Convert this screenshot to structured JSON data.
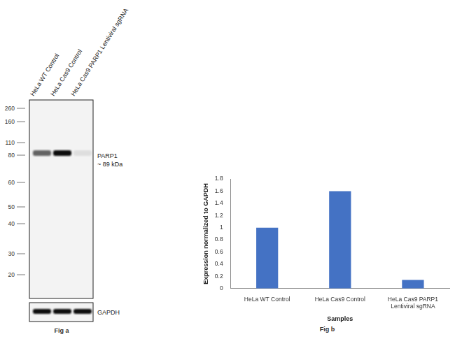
{
  "blot": {
    "lanes": [
      "HeLa WT Control",
      "HeLa Cas9 Control",
      "HeLa Cas9 PARP1 Lentiviral sgRNA"
    ],
    "markers": [
      260,
      160,
      110,
      80,
      60,
      50,
      40,
      30,
      20
    ],
    "band_label": "PARP1",
    "band_size": "~ 89 kDa",
    "loading_label": "GAPDH",
    "caption": "Fig a"
  },
  "chart_data": {
    "type": "bar",
    "categories": [
      "HeLa WT Control",
      "HeLa Cas9 Control",
      [
        "HeLa Cas9 PARP1",
        "Lentiviral sgRNA"
      ]
    ],
    "values": [
      1,
      1.6,
      0.14
    ],
    "color": "#4472c4",
    "x_label": "Samples",
    "y_label": "Expression normalized to GAPDH",
    "ylim": [
      0,
      1.8
    ],
    "yticks": [
      0,
      0.2,
      0.4,
      0.6,
      0.8,
      1,
      1.2,
      1.4,
      1.6,
      1.8
    ],
    "grid": false,
    "caption": "Fig b"
  }
}
